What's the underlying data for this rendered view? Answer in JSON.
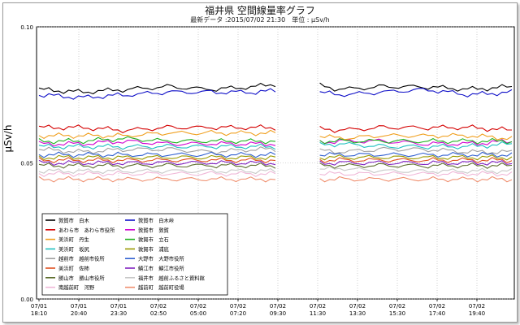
{
  "chart_data": {
    "type": "line",
    "title": "福井県 空間線量率グラフ",
    "subtitle": "最新データ :2015/07/02 21:30　単位 : μSv/h",
    "ylabel": "μSv/h",
    "xlabel": "",
    "ylim": [
      0.0,
      0.1
    ],
    "y_ticks": [
      "0.10",
      "0.05",
      "0.00"
    ],
    "grid": true,
    "legend_placement": "bottom-left",
    "x_ticks": [
      {
        "date": "07/01",
        "time": "18:10"
      },
      {
        "date": "07/01",
        "time": "20:40"
      },
      {
        "date": "07/01",
        "time": "23:30"
      },
      {
        "date": "07/02",
        "time": "02:50"
      },
      {
        "date": "07/02",
        "time": "05:00"
      },
      {
        "date": "07/02",
        "time": "07:20"
      },
      {
        "date": "07/02",
        "time": "09:30"
      },
      {
        "date": "07/02",
        "time": "11:30"
      },
      {
        "date": "07/02",
        "time": "13:30"
      },
      {
        "date": "07/02",
        "time": "15:30"
      },
      {
        "date": "07/02",
        "time": "17:40"
      },
      {
        "date": "07/02",
        "time": "19:40"
      }
    ],
    "gap_between_ticks": [
      6,
      7
    ],
    "series": [
      {
        "name": "敦賀市　白木",
        "color": "#000000",
        "values": [
          0.077,
          0.076,
          0.077,
          0.078,
          0.077,
          0.078,
          0.08,
          0.077,
          0.078,
          0.078,
          0.077,
          0.078
        ]
      },
      {
        "name": "敦賀市　白木峠",
        "color": "#1010c8",
        "values": [
          0.075,
          0.074,
          0.075,
          0.076,
          0.076,
          0.076,
          0.077,
          0.075,
          0.076,
          0.077,
          0.075,
          0.076
        ]
      },
      {
        "name": "あわら市　あわら市役所",
        "color": "#d40000",
        "values": [
          0.063,
          0.063,
          0.062,
          0.063,
          0.063,
          0.063,
          0.063,
          0.062,
          0.063,
          0.063,
          0.063,
          0.062
        ]
      },
      {
        "name": "敦賀市　敦賀",
        "color": "#d000d0",
        "values": [
          0.057,
          0.057,
          0.058,
          0.057,
          0.057,
          0.057,
          0.057,
          0.058,
          0.058,
          0.057,
          0.057,
          0.058
        ]
      },
      {
        "name": "美浜町　丹生",
        "color": "#f0a020",
        "values": [
          0.06,
          0.06,
          0.06,
          0.061,
          0.061,
          0.061,
          0.061,
          0.059,
          0.06,
          0.06,
          0.06,
          0.059
        ]
      },
      {
        "name": "敦賀市　立石",
        "color": "#20b020",
        "values": [
          0.058,
          0.058,
          0.059,
          0.058,
          0.058,
          0.058,
          0.058,
          0.058,
          0.058,
          0.058,
          0.058,
          0.058
        ]
      },
      {
        "name": "美浜町　坂尻",
        "color": "#20c0c0",
        "values": [
          0.056,
          0.056,
          0.056,
          0.056,
          0.056,
          0.056,
          0.056,
          0.057,
          0.056,
          0.056,
          0.056,
          0.057
        ]
      },
      {
        "name": "敦賀市　浦底",
        "color": "#9a9a00",
        "values": [
          0.052,
          0.052,
          0.052,
          0.052,
          0.052,
          0.052,
          0.052,
          0.052,
          0.052,
          0.052,
          0.052,
          0.052
        ]
      },
      {
        "name": "越前市　越前市役所",
        "color": "#a0a0a0",
        "values": [
          0.055,
          0.054,
          0.055,
          0.055,
          0.054,
          0.055,
          0.055,
          0.054,
          0.055,
          0.055,
          0.054,
          0.054
        ]
      },
      {
        "name": "大野市　大野市役所",
        "color": "#3060d0",
        "values": [
          0.053,
          0.053,
          0.053,
          0.053,
          0.053,
          0.053,
          0.053,
          0.053,
          0.053,
          0.053,
          0.053,
          0.053
        ]
      },
      {
        "name": "美浜町　佐柿",
        "color": "#e05020",
        "values": [
          0.051,
          0.051,
          0.051,
          0.051,
          0.051,
          0.051,
          0.051,
          0.051,
          0.051,
          0.051,
          0.051,
          0.051
        ]
      },
      {
        "name": "鯖江市　鯖江市役所",
        "color": "#8020c0",
        "values": [
          0.05,
          0.05,
          0.05,
          0.05,
          0.05,
          0.05,
          0.05,
          0.05,
          0.05,
          0.05,
          0.05,
          0.05
        ]
      },
      {
        "name": "勝山市　勝山市役所",
        "color": "#607030",
        "values": [
          0.049,
          0.049,
          0.049,
          0.049,
          0.049,
          0.049,
          0.049,
          0.049,
          0.049,
          0.049,
          0.049,
          0.049
        ]
      },
      {
        "name": "福井市　越前ふるさと資料館",
        "color": "#c8c8c8",
        "values": [
          0.047,
          0.047,
          0.047,
          0.047,
          0.047,
          0.047,
          0.047,
          0.048,
          0.047,
          0.047,
          0.047,
          0.047
        ]
      },
      {
        "name": "南越前町　河野",
        "color": "#f0b8d8",
        "values": [
          0.046,
          0.046,
          0.046,
          0.046,
          0.046,
          0.046,
          0.046,
          0.046,
          0.046,
          0.046,
          0.046,
          0.046
        ]
      },
      {
        "name": "越前町　越前町役場",
        "color": "#f09070",
        "values": [
          0.044,
          0.044,
          0.044,
          0.044,
          0.044,
          0.044,
          0.044,
          0.044,
          0.044,
          0.044,
          0.044,
          0.044
        ]
      }
    ]
  }
}
